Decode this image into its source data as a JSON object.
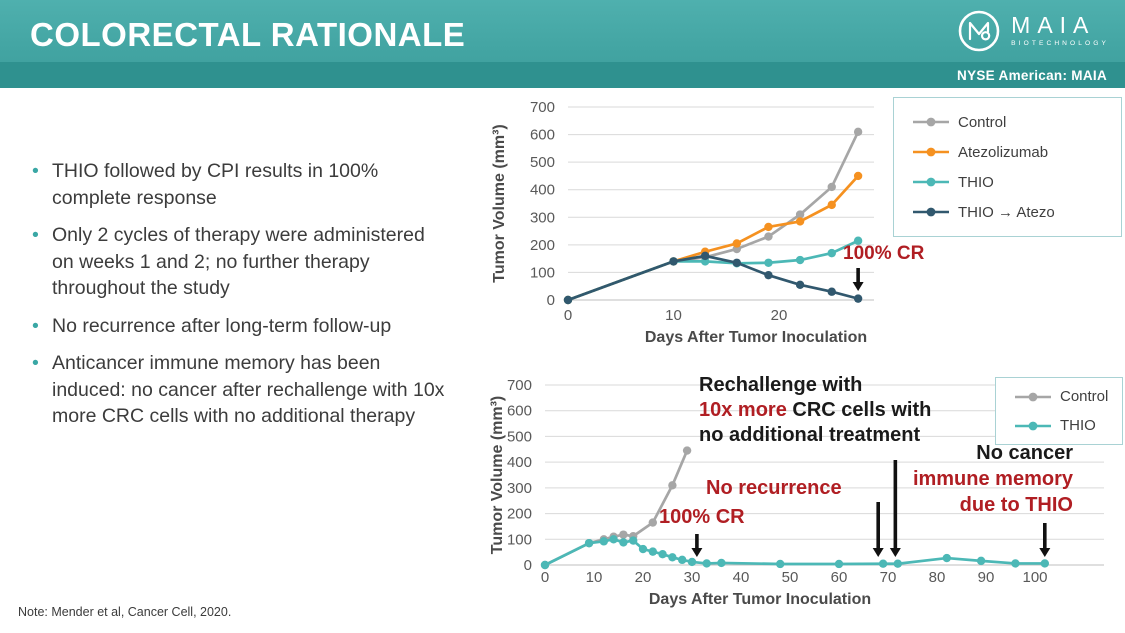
{
  "header": {
    "title": "COLORECTAL RATIONALE",
    "logo_brand": "MAIA",
    "logo_sub": "BIOTECHNOLOGY",
    "ticker": "NYSE American: MAIA"
  },
  "bullets": [
    "THIO followed by CPI results in 100% complete response",
    "Only 2 cycles of therapy were administered on weeks 1 and 2; no further therapy throughout the study",
    "No recurrence after long-term follow-up",
    "Anticancer immune memory has been induced: no cancer after rechallenge with 10x more CRC cells with no additional therapy"
  ],
  "note": "Note: Mender et al, Cancer Cell, 2020.",
  "colors": {
    "header_teal": "#43a5a3",
    "header_band": "#2f918f",
    "annotation_red": "#b01e23",
    "annotation_black": "#1a1a1a",
    "grid": "#d9d9d9",
    "axis_line": "#bfbfbf",
    "tick_text": "#595959",
    "axis_title": "#4a4a4a",
    "body_text": "#3c3c3c",
    "bullet_dot": "#3aa7a5",
    "legend_border": "#a9d2d4",
    "arrow_black": "#111111",
    "series_control": "#a6a6a6",
    "series_atezolizumab": "#f59120",
    "series_thio": "#4cb8b6",
    "series_thio_atezo": "#31586e"
  },
  "chart_data": [
    {
      "id": "top",
      "type": "line",
      "title": "",
      "xlabel": "Days After Tumor Inoculation",
      "ylabel": "Tumor Volume (mm³)",
      "xlim": [
        0,
        28.5
      ],
      "ylim": [
        0,
        700
      ],
      "yticks": [
        0,
        100,
        200,
        300,
        400,
        500,
        600,
        700
      ],
      "xticks": [
        0,
        10,
        20
      ],
      "grid": "horizontal",
      "legend_position": "top-right",
      "series": [
        {
          "name": "Control",
          "color": "#a6a6a6",
          "x": [
            0,
            10,
            13,
            16,
            19,
            22,
            25,
            27.5
          ],
          "y": [
            0,
            140,
            155,
            185,
            230,
            310,
            410,
            610
          ]
        },
        {
          "name": "Atezolizumab",
          "color": "#f59120",
          "x": [
            0,
            10,
            13,
            16,
            19,
            22,
            25,
            27.5
          ],
          "y": [
            0,
            140,
            175,
            205,
            265,
            285,
            345,
            450
          ]
        },
        {
          "name": "THIO",
          "color": "#4cb8b6",
          "x": [
            0,
            10,
            13,
            16,
            19,
            22,
            25,
            27.5
          ],
          "y": [
            0,
            140,
            140,
            133,
            135,
            145,
            170,
            215
          ]
        },
        {
          "name": "THIO → Atezo",
          "color": "#31586e",
          "x": [
            0,
            10,
            13,
            16,
            19,
            22,
            25,
            27.5
          ],
          "y": [
            0,
            140,
            160,
            135,
            90,
            55,
            30,
            5
          ]
        }
      ],
      "annotations": [
        {
          "id": "top-cr",
          "arrow_day": 27.5,
          "lines": [
            [
              {
                "t": "100% CR",
                "c": "#b01e23"
              }
            ]
          ]
        }
      ]
    },
    {
      "id": "bottom",
      "type": "line",
      "title": "",
      "xlabel": "Days After Tumor Inoculation",
      "ylabel": "Tumor Volume (mm³)",
      "xlim": [
        0,
        104
      ],
      "ylim": [
        0,
        700
      ],
      "yticks": [
        0,
        100,
        200,
        300,
        400,
        500,
        600,
        700
      ],
      "xticks": [
        0,
        10,
        20,
        30,
        40,
        50,
        60,
        70,
        80,
        90,
        100
      ],
      "grid": "horizontal",
      "legend_position": "top-right",
      "series": [
        {
          "name": "Control",
          "color": "#a6a6a6",
          "x": [
            0,
            9,
            12,
            14,
            16,
            18,
            22,
            26,
            29
          ],
          "y": [
            0,
            85,
            100,
            110,
            118,
            112,
            165,
            310,
            445
          ]
        },
        {
          "name": "THIO",
          "color": "#4cb8b6",
          "x": [
            0,
            9,
            12,
            14,
            16,
            18,
            20,
            22,
            24,
            26,
            28,
            30,
            33,
            36,
            48,
            60,
            69,
            72,
            82,
            89,
            96,
            102
          ],
          "y": [
            0,
            85,
            92,
            100,
            88,
            95,
            62,
            52,
            42,
            30,
            20,
            12,
            6,
            8,
            4,
            4,
            5,
            5,
            27,
            16,
            6,
            6
          ]
        }
      ],
      "annotations": [
        {
          "id": "bot-cr",
          "arrow_day": 31,
          "lines": [
            [
              {
                "t": "100% CR",
                "c": "#b01e23"
              }
            ]
          ]
        },
        {
          "id": "bot-norec",
          "arrow_day": 68,
          "lines": [
            [
              {
                "t": "No recurrence",
                "c": "#b01e23"
              }
            ]
          ]
        },
        {
          "id": "bot-rechal",
          "arrow_day": 71.5,
          "lines": [
            [
              {
                "t": "Rechallenge with",
                "c": "#1a1a1a"
              }
            ],
            [
              {
                "t": "10x more",
                "c": "#b01e23"
              },
              {
                "t": " CRC cells with",
                "c": "#1a1a1a"
              }
            ],
            [
              {
                "t": "no additional treatment",
                "c": "#1a1a1a"
              }
            ]
          ]
        },
        {
          "id": "bot-nocancer",
          "arrow_day": 102,
          "lines": [
            [
              {
                "t": "No cancer",
                "c": "#1a1a1a"
              }
            ],
            [
              {
                "t": "immune memory",
                "c": "#b01e23"
              }
            ],
            [
              {
                "t": "due to THIO",
                "c": "#b01e23"
              }
            ]
          ]
        }
      ]
    }
  ]
}
